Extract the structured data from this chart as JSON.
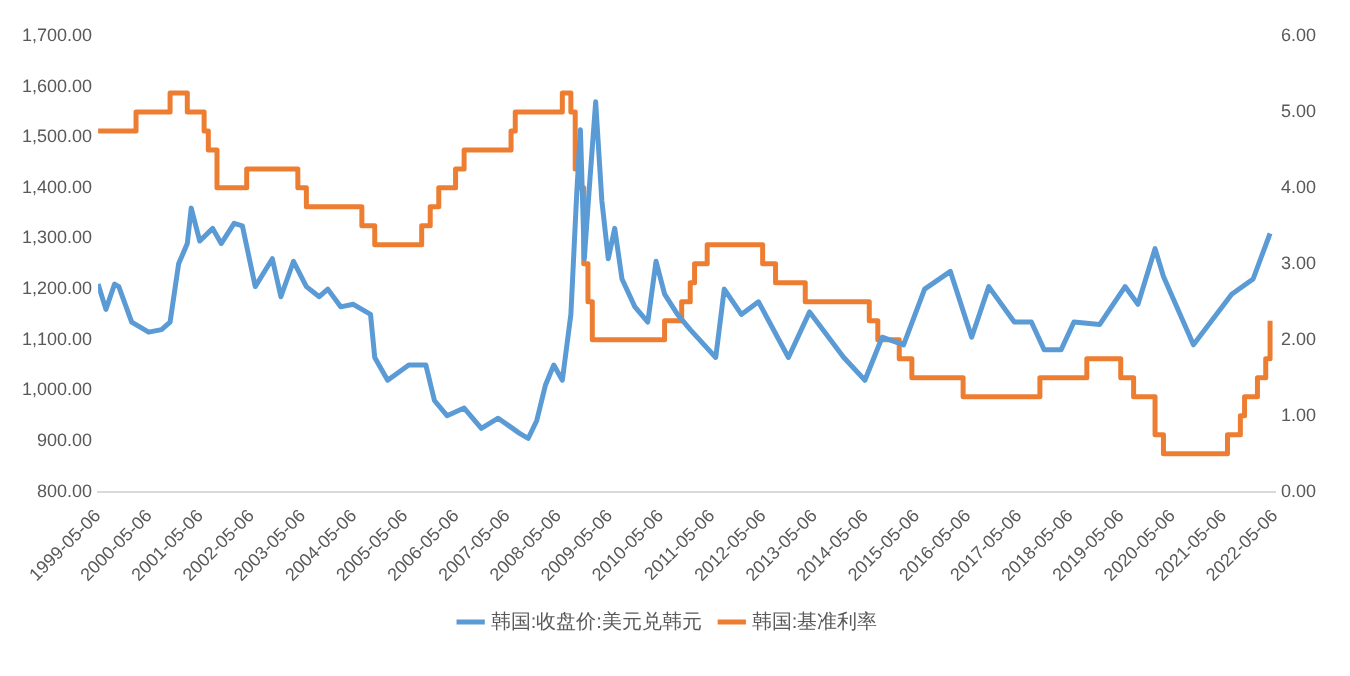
{
  "chart_data": {
    "type": "line",
    "legend": "bottom",
    "xlim": [
      "1999-05-06",
      "2022-05-06"
    ],
    "xticks": [
      "1999-05-06",
      "2000-05-06",
      "2001-05-06",
      "2002-05-06",
      "2003-05-06",
      "2004-05-06",
      "2005-05-06",
      "2006-05-06",
      "2007-05-06",
      "2008-05-06",
      "2009-05-06",
      "2010-05-06",
      "2011-05-06",
      "2012-05-06",
      "2013-05-06",
      "2014-05-06",
      "2015-05-06",
      "2016-05-06",
      "2017-05-06",
      "2018-05-06",
      "2019-05-06",
      "2020-05-06",
      "2021-05-06",
      "2022-05-06"
    ],
    "ylim": [
      800,
      1700
    ],
    "yticks": [
      {
        "value": 800,
        "label": "800.00"
      },
      {
        "value": 900,
        "label": "900.00"
      },
      {
        "value": 1000,
        "label": "1,000.00"
      },
      {
        "value": 1100,
        "label": "1,100.00"
      },
      {
        "value": 1200,
        "label": "1,200.00"
      },
      {
        "value": 1300,
        "label": "1,300.00"
      },
      {
        "value": 1400,
        "label": "1,400.00"
      },
      {
        "value": 1500,
        "label": "1,500.00"
      },
      {
        "value": 1600,
        "label": "1,600.00"
      },
      {
        "value": 1700,
        "label": "1,700.00"
      }
    ],
    "y2lim": [
      0,
      6
    ],
    "y2ticks": [
      {
        "value": 0,
        "label": "0.00"
      },
      {
        "value": 1,
        "label": "1.00"
      },
      {
        "value": 2,
        "label": "2.00"
      },
      {
        "value": 3,
        "label": "3.00"
      },
      {
        "value": 4,
        "label": "4.00"
      },
      {
        "value": 5,
        "label": "5.00"
      },
      {
        "value": 6,
        "label": "6.00"
      }
    ],
    "series": [
      {
        "name": "韩国:收盘价:美元兑韩元",
        "type": "line",
        "color": "#5b9bd5",
        "x": [
          "1999-05-06",
          "1999-07",
          "1999-09",
          "1999-10",
          "2000-01",
          "2000-05",
          "2000-08",
          "2000-10",
          "2000-12",
          "2001-02",
          "2001-03",
          "2001-05",
          "2001-08",
          "2001-10",
          "2002-01",
          "2002-03",
          "2002-06",
          "2002-10",
          "2002-12",
          "2003-03",
          "2003-06",
          "2003-09",
          "2003-11",
          "2004-02",
          "2004-05",
          "2004-09",
          "2004-10",
          "2005-01",
          "2005-06",
          "2005-10",
          "2005-12",
          "2006-03",
          "2006-07",
          "2006-11",
          "2007-03",
          "2007-08",
          "2007-10",
          "2007-12",
          "2008-02",
          "2008-04",
          "2008-06",
          "2008-08",
          "2008-09-12",
          "2008-10-08",
          "2008-11-05",
          "2008-12-08",
          "2009-01-25",
          "2009-03-10",
          "2009-04-25",
          "2009-06-10",
          "2009-08",
          "2009-11",
          "2010-02",
          "2010-04",
          "2010-06",
          "2010-09",
          "2010-12",
          "2011-06",
          "2011-08",
          "2011-12",
          "2012-04",
          "2012-11",
          "2013-04",
          "2013-12",
          "2014-05",
          "2014-09",
          "2015-02",
          "2015-07",
          "2016-01",
          "2016-06",
          "2016-10",
          "2017-04",
          "2017-08",
          "2017-11",
          "2018-03",
          "2018-06",
          "2018-12",
          "2019-06",
          "2019-09",
          "2020-01",
          "2020-03",
          "2020-10",
          "2021-02",
          "2021-07",
          "2021-12",
          "2022-04"
        ],
        "values": [
          1210,
          1160,
          1210,
          1205,
          1135,
          1115,
          1120,
          1135,
          1250,
          1290,
          1360,
          1295,
          1320,
          1290,
          1330,
          1325,
          1205,
          1260,
          1185,
          1255,
          1205,
          1185,
          1200,
          1165,
          1170,
          1150,
          1065,
          1020,
          1050,
          1050,
          980,
          950,
          965,
          925,
          945,
          915,
          905,
          940,
          1010,
          1050,
          1020,
          1150,
          1390,
          1515,
          1260,
          1390,
          1570,
          1375,
          1260,
          1320,
          1220,
          1165,
          1135,
          1255,
          1190,
          1150,
          1120,
          1065,
          1200,
          1150,
          1175,
          1065,
          1155,
          1065,
          1020,
          1105,
          1090,
          1200,
          1235,
          1105,
          1205,
          1135,
          1135,
          1080,
          1080,
          1135,
          1130,
          1205,
          1170,
          1280,
          1225,
          1090,
          1135,
          1190,
          1220,
          1310
        ]
      },
      {
        "name": "韩国:基准利率",
        "type": "step",
        "axis": "y2",
        "color": "#ed7d31",
        "x": [
          "1999-05-06",
          "2000-02",
          "2000-10",
          "2001-02",
          "2001-06",
          "2001-07",
          "2001-09",
          "2002-04",
          "2003-04",
          "2003-06",
          "2004-07",
          "2004-10",
          "2005-09",
          "2005-11",
          "2006-01",
          "2006-05",
          "2006-07",
          "2007-06",
          "2007-07",
          "2008-06",
          "2008-08",
          "2008-09",
          "2008-10",
          "2008-11",
          "2008-12",
          "2009-01",
          "2010-06",
          "2010-10",
          "2010-12",
          "2011-01",
          "2011-04",
          "2012-05",
          "2012-08",
          "2013-03",
          "2014-06",
          "2014-08",
          "2015-01",
          "2015-04",
          "2016-04",
          "2017-10",
          "2018-09",
          "2019-05",
          "2019-08",
          "2020-01",
          "2020-03",
          "2021-06",
          "2021-09",
          "2021-10",
          "2022-01",
          "2022-03",
          "2022-04"
        ],
        "values": [
          4.75,
          5.0,
          5.25,
          5.0,
          4.75,
          4.5,
          4.0,
          4.25,
          4.0,
          3.75,
          3.5,
          3.25,
          3.5,
          3.75,
          4.0,
          4.25,
          4.5,
          4.75,
          5.0,
          5.25,
          5.0,
          4.25,
          4.0,
          3.0,
          2.5,
          2.0,
          2.25,
          2.5,
          2.75,
          3.0,
          3.25,
          3.0,
          2.75,
          2.5,
          2.25,
          2.0,
          1.75,
          1.5,
          1.25,
          1.5,
          1.75,
          1.5,
          1.25,
          0.75,
          0.5,
          0.75,
          1.0,
          1.25,
          1.5,
          1.75,
          2.25
        ]
      }
    ]
  }
}
